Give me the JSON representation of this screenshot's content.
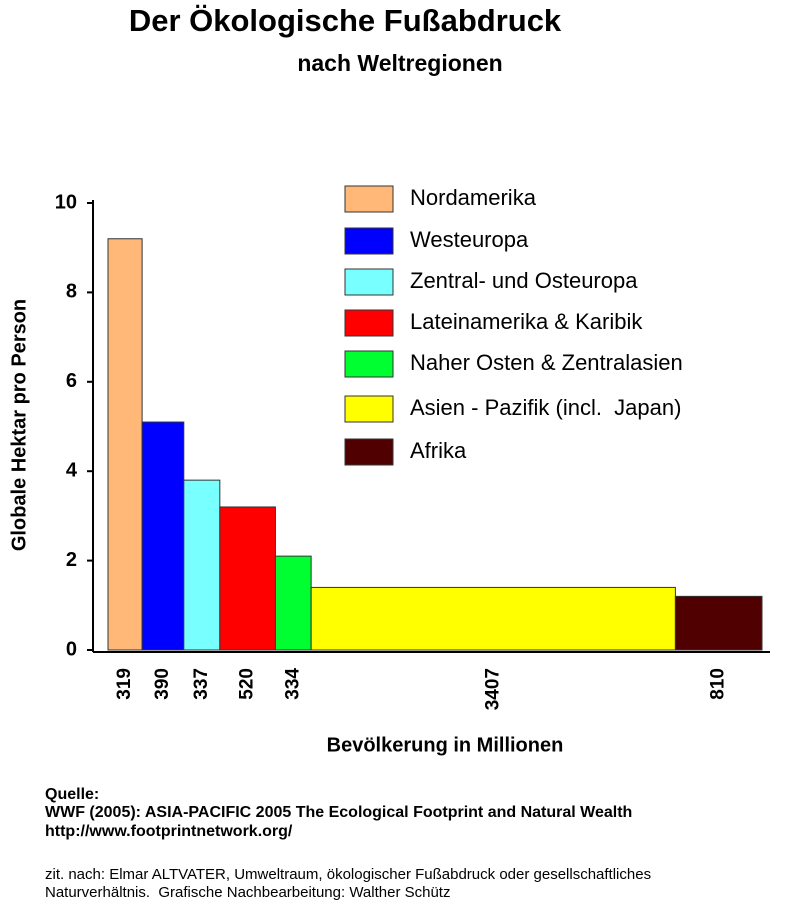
{
  "chart_data": {
    "type": "variable-width-bar",
    "title": "Der Ökologische Fußabdruck",
    "subtitle": "nach Weltregionen",
    "y_label": "Globale Hektar pro Person",
    "x_label": "Bevölkerung in Millionen",
    "categories": [
      "Nordamerika",
      "Westeuropa",
      "Zentral- und Osteuropa",
      "Lateinamerika & Karibik",
      "Naher Osten & Zentralasien",
      "Asien - Pazifik (incl.  Japan)",
      "Afrika"
    ],
    "values": [
      9.2,
      5.1,
      3.8,
      3.2,
      2.1,
      1.4,
      1.2
    ],
    "widths": [
      319,
      390,
      337,
      520,
      334,
      3407,
      810
    ],
    "colors": [
      "#ffb878",
      "#0000ff",
      "#78ffff",
      "#ff0000",
      "#00ff30",
      "#ffff00",
      "#500000"
    ],
    "ylim": [
      0,
      10
    ],
    "yticks": [
      0,
      2,
      4,
      6,
      8,
      10
    ]
  },
  "footer": {
    "source_heading": "Quelle:",
    "source": "WWF (2005): ASIA-PACIFIC 2005 The Ecological Footprint and Natural Wealth",
    "url": "http://www.footprintnetwork.org/",
    "note_line1": "zit. nach: Elmar ALTVATER, Umweltraum, ökologischer Fußabdruck oder gesellschaftliches",
    "note_line2": "Naturverhältnis.  Grafische Nachbearbeitung: Walther Schütz"
  }
}
